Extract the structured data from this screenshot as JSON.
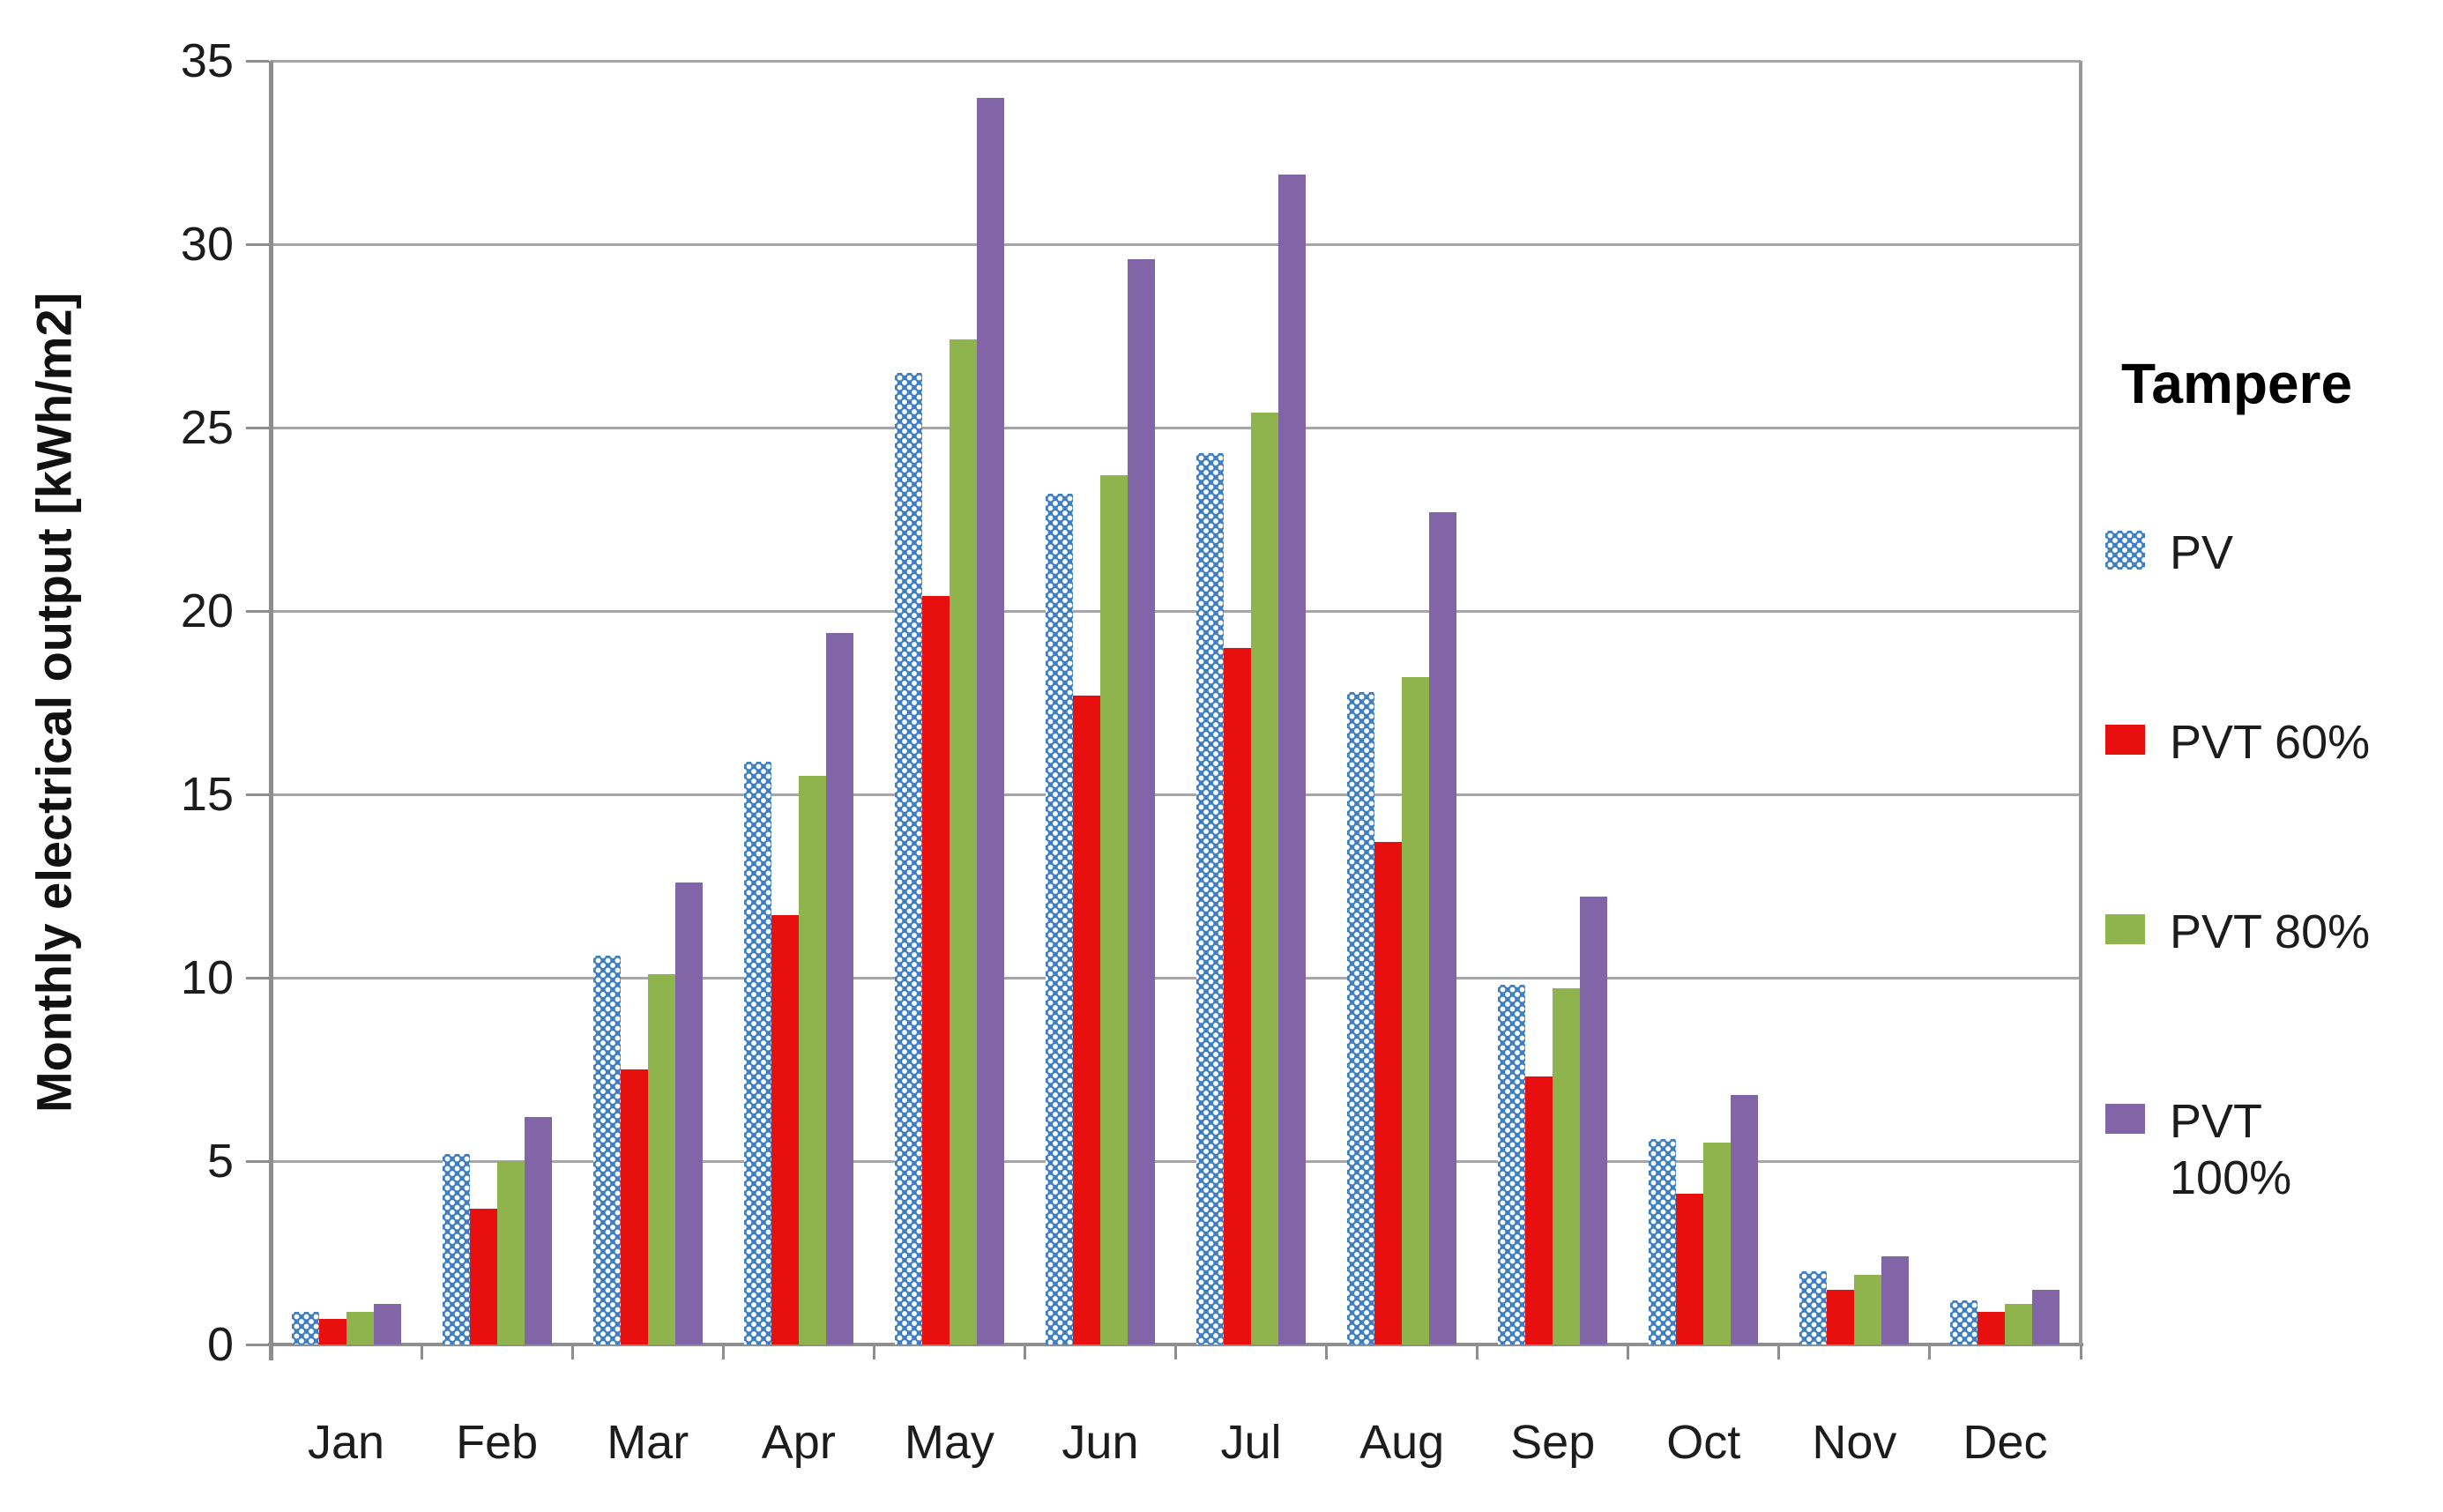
{
  "chart_data": {
    "type": "bar",
    "title": "Tampere",
    "ylabel": "Monthly electrical output [kWh/m2]",
    "xlabel": "",
    "ylim": [
      0,
      35
    ],
    "yticks": [
      0,
      5,
      10,
      15,
      20,
      25,
      30,
      35
    ],
    "grid": "horizontal",
    "legend_position": "right",
    "categories": [
      "Jan",
      "Feb",
      "Mar",
      "Apr",
      "May",
      "Jun",
      "Jul",
      "Aug",
      "Sep",
      "Oct",
      "Nov",
      "Dec"
    ],
    "series": [
      {
        "name": "PV",
        "color": "#3e7ec2",
        "pattern": "white-dots",
        "values": [
          0.9,
          5.2,
          10.6,
          15.9,
          26.5,
          23.2,
          24.3,
          17.8,
          9.8,
          5.6,
          2.0,
          1.2
        ]
      },
      {
        "name": "PVT 60%",
        "color": "#e8100e",
        "pattern": "solid",
        "values": [
          0.7,
          3.7,
          7.5,
          11.7,
          20.4,
          17.7,
          19.0,
          13.7,
          7.3,
          4.1,
          1.5,
          0.9
        ]
      },
      {
        "name": "PVT 80%",
        "color": "#8fb44d",
        "pattern": "solid",
        "values": [
          0.9,
          5.0,
          10.1,
          15.5,
          27.4,
          23.7,
          25.4,
          18.2,
          9.7,
          5.5,
          1.9,
          1.1
        ]
      },
      {
        "name": "PVT 100%",
        "color": "#8265a7",
        "pattern": "solid",
        "values": [
          1.1,
          6.2,
          12.6,
          19.4,
          34.0,
          29.6,
          31.9,
          22.7,
          12.2,
          6.8,
          2.4,
          1.5
        ]
      }
    ]
  },
  "legend": {
    "title": "Tampere",
    "items": [
      {
        "lines": [
          "PV"
        ]
      },
      {
        "lines": [
          "PVT 60%"
        ]
      },
      {
        "lines": [
          "PVT 80%"
        ]
      },
      {
        "lines": [
          "PVT",
          "100%"
        ]
      }
    ]
  },
  "colors": {
    "gridline": "#a6a6a6",
    "axis": "#8e8e8e",
    "text": "#1c1c1c"
  }
}
